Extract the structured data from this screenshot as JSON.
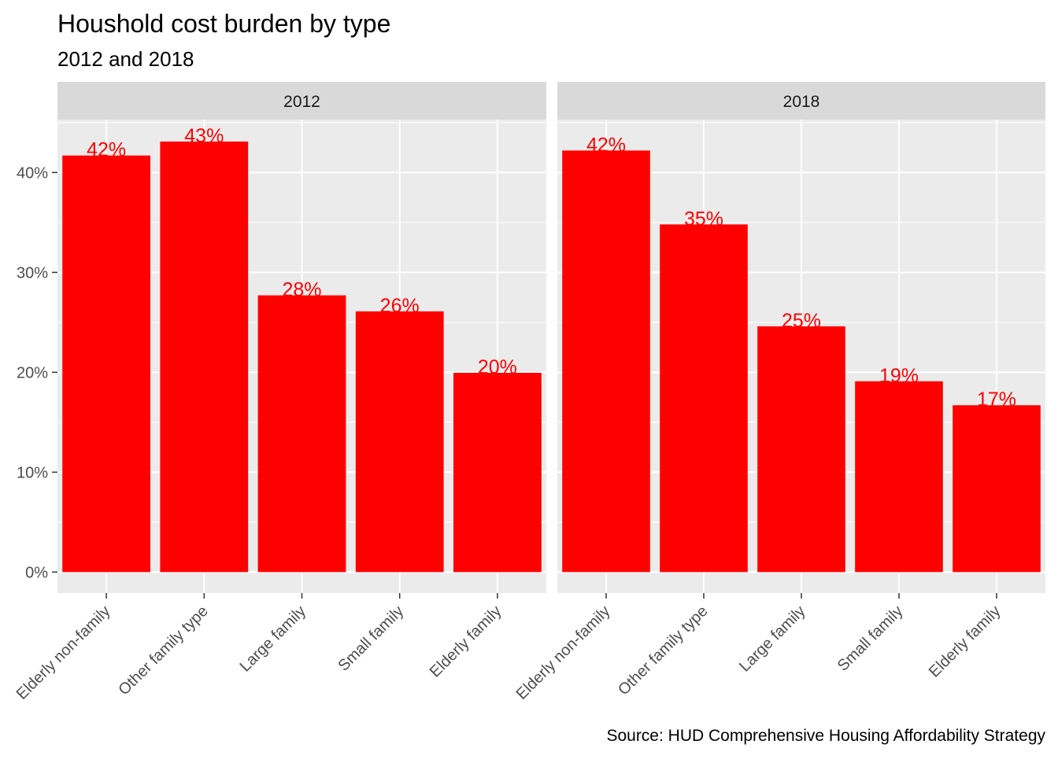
{
  "chart_data": {
    "type": "bar",
    "title": "Houshold cost burden by type",
    "subtitle": "2012 and 2018",
    "caption": "Source: HUD Comprehensive Housing Affordability Strategy",
    "categories": [
      "Elderly non-family",
      "Other family type",
      "Large family",
      "Small family",
      "Elderly family"
    ],
    "y_ticks": [
      "0%",
      "10%",
      "20%",
      "30%",
      "40%"
    ],
    "y_tick_values": [
      0,
      10,
      20,
      30,
      40
    ],
    "ylim": [
      -2.1,
      45.3
    ],
    "grid": true,
    "bar_color": "#ff0000",
    "label_color": "#ff0000",
    "panel_background": "#ebebeb",
    "strip_background": "#d9d9d9",
    "facets": [
      {
        "strip_label": "2012",
        "values": [
          41.7,
          43.1,
          27.7,
          26.1,
          19.95
        ],
        "labels": [
          "42%",
          "43%",
          "28%",
          "26%",
          "20%"
        ]
      },
      {
        "strip_label": "2018",
        "values": [
          42.2,
          34.8,
          24.6,
          19.1,
          16.7
        ],
        "labels": [
          "42%",
          "35%",
          "25%",
          "19%",
          "17%"
        ]
      }
    ]
  }
}
